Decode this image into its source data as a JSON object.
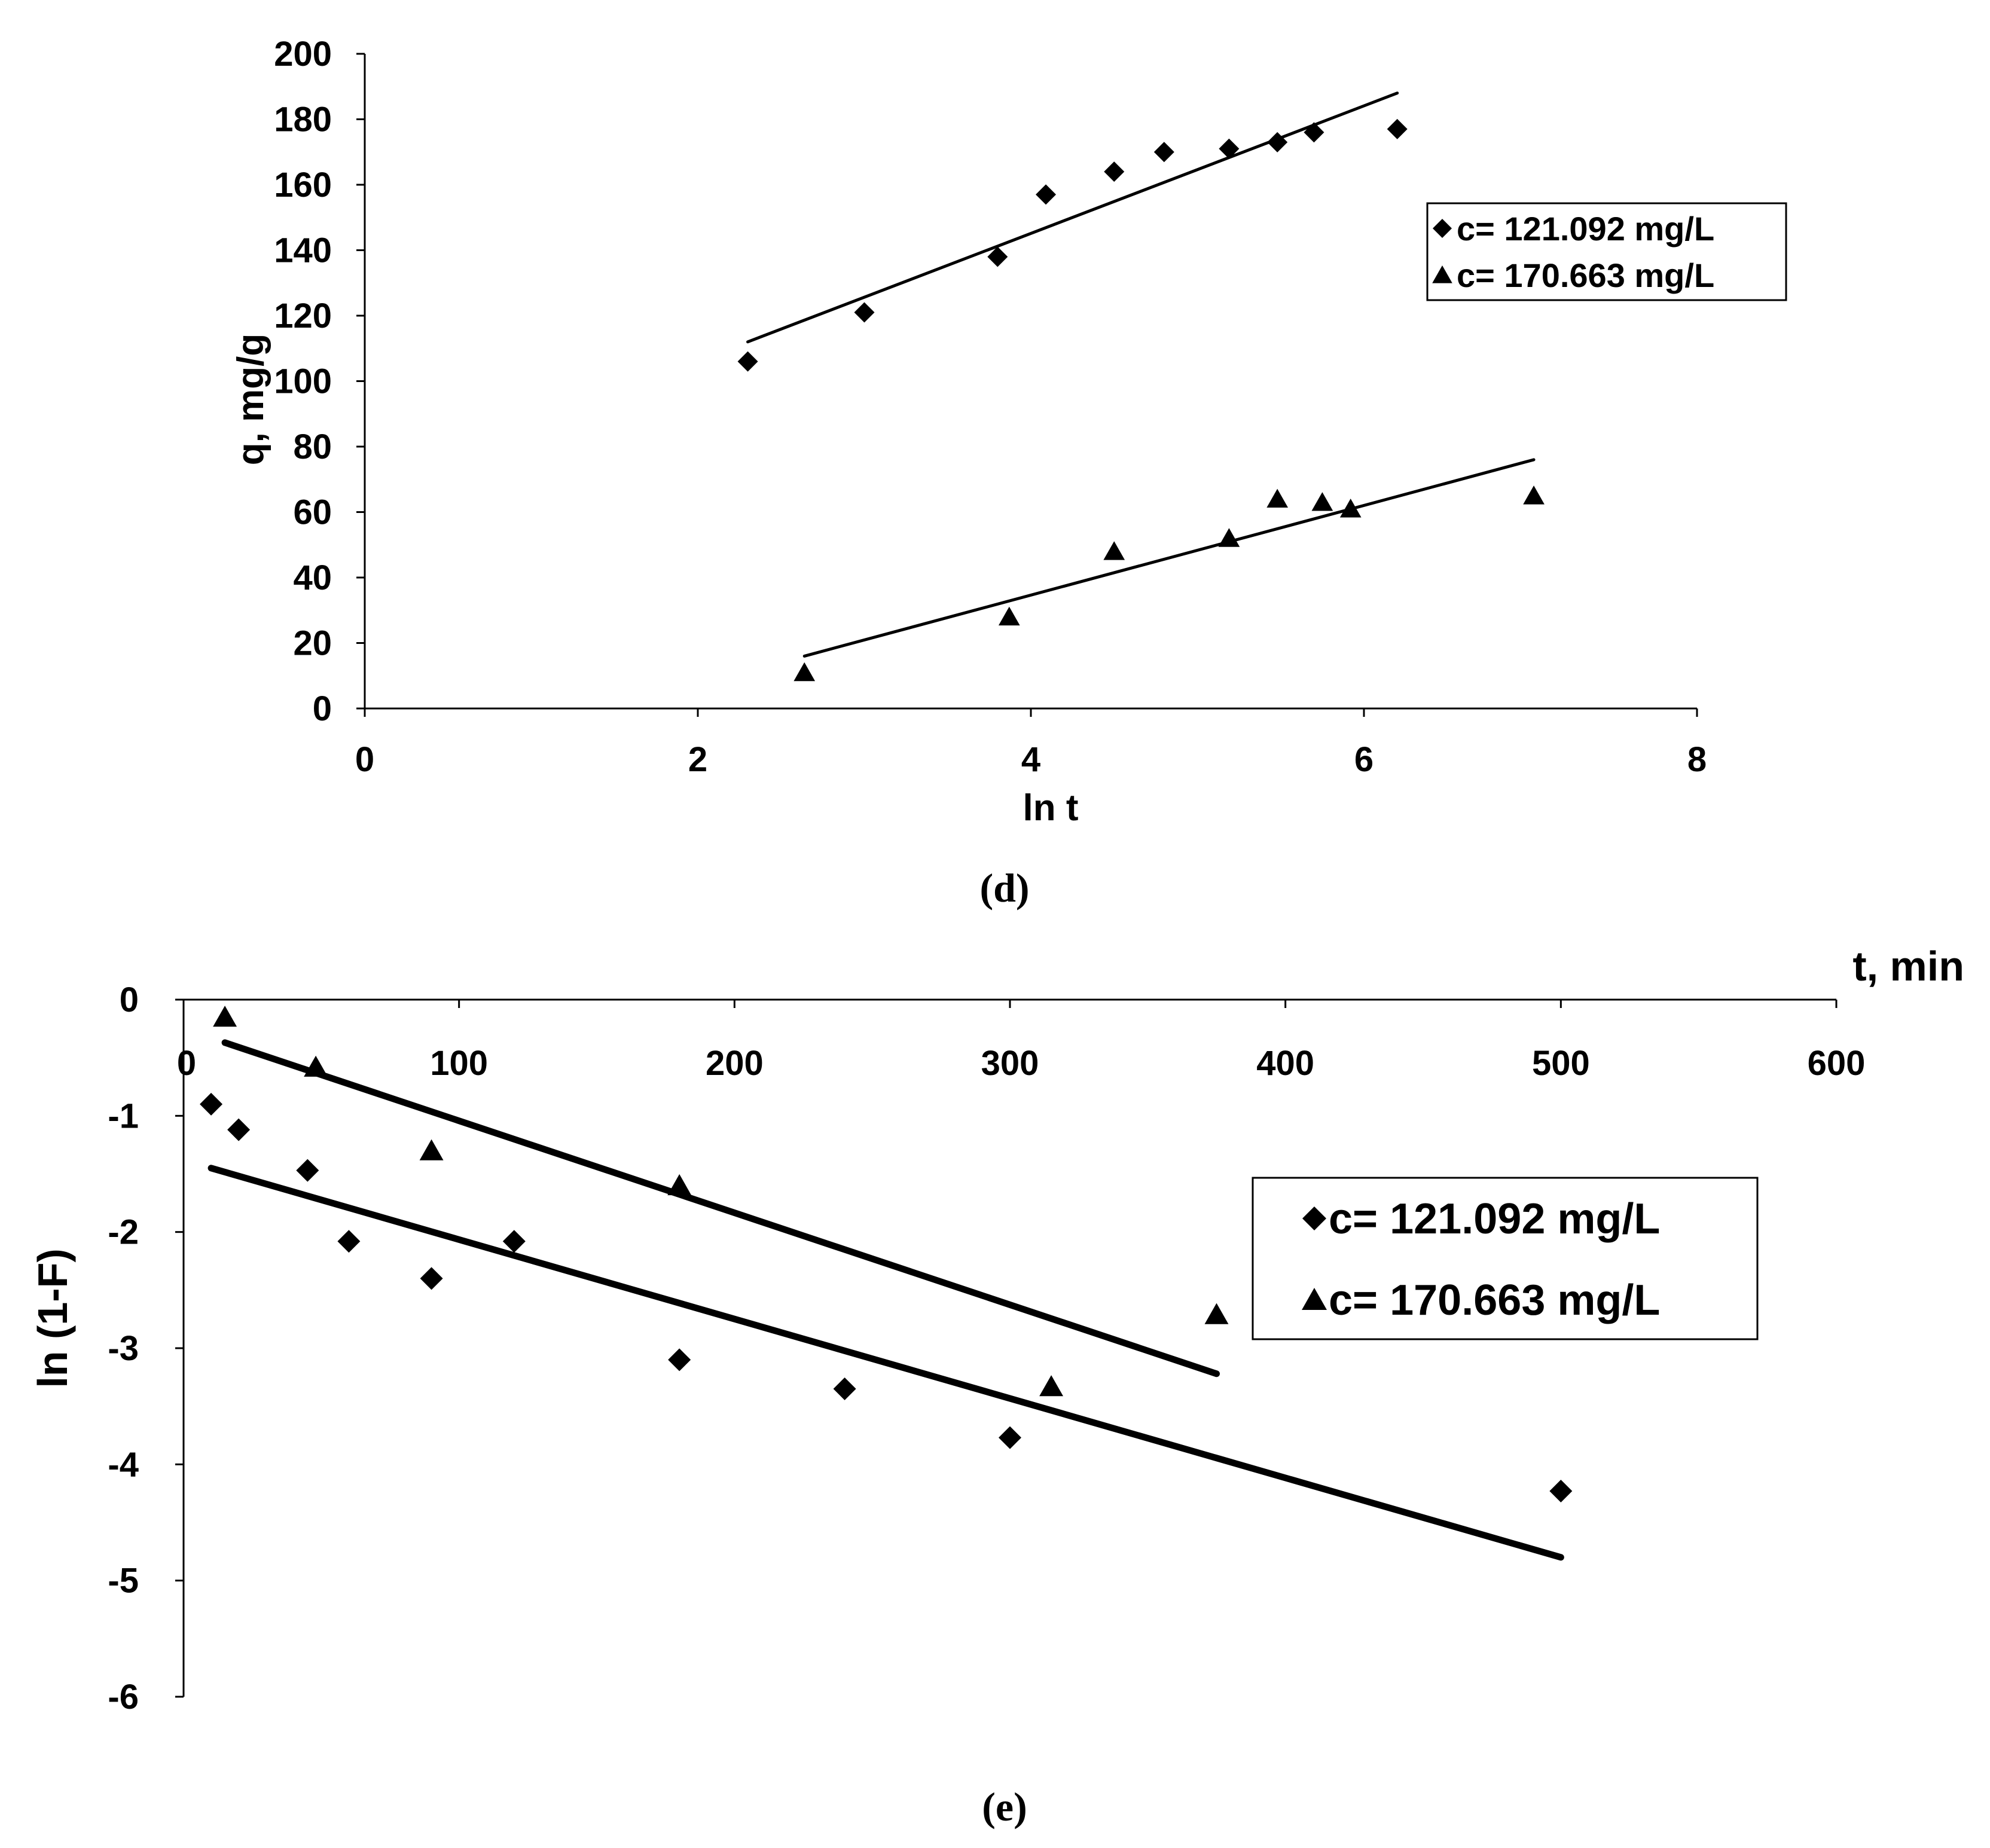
{
  "chart_data": [
    {
      "id": "d",
      "type": "scatter",
      "caption": "(d)",
      "xlabel": "ln t",
      "ylabel": "q, mg/g",
      "xlim": [
        0,
        8
      ],
      "ylim": [
        0,
        200
      ],
      "xticks": [
        "0",
        "2",
        "4",
        "6",
        "8"
      ],
      "yticks": [
        "0",
        "20",
        "40",
        "60",
        "80",
        "100",
        "120",
        "140",
        "160",
        "180",
        "200"
      ],
      "legend_position": "right-middle",
      "series": [
        {
          "name": "c= 121.092 mg/L",
          "marker": "diamond",
          "x": [
            2.3,
            3.0,
            3.8,
            4.09,
            4.5,
            4.8,
            5.19,
            5.48,
            5.7,
            6.2
          ],
          "y": [
            106,
            121,
            138,
            157,
            164,
            170,
            171,
            173,
            176,
            177
          ],
          "trendline": {
            "x": [
              2.3,
              6.2
            ],
            "y": [
              112,
              188
            ]
          }
        },
        {
          "name": "c= 170.663 mg/L",
          "marker": "triangle",
          "x": [
            2.64,
            3.87,
            4.5,
            5.19,
            5.48,
            5.75,
            5.92,
            7.02
          ],
          "y": [
            11,
            28,
            48,
            52,
            64,
            63,
            61,
            65
          ],
          "trendline": {
            "x": [
              2.64,
              7.02
            ],
            "y": [
              16,
              76
            ]
          }
        }
      ]
    },
    {
      "id": "e",
      "type": "scatter",
      "caption": "(e)",
      "xlabel": "t, min",
      "ylabel": "ln (1-F)",
      "xlim": [
        0,
        600
      ],
      "ylim": [
        -6,
        0
      ],
      "xticks": [
        "0",
        "100",
        "200",
        "300",
        "400",
        "500",
        "600"
      ],
      "yticks": [
        "-6",
        "-5",
        "-4",
        "-3",
        "-2",
        "-1",
        "0"
      ],
      "legend_position": "right-middle",
      "series": [
        {
          "name": "c= 121.092 mg/L",
          "marker": "diamond",
          "x": [
            10,
            20,
            45,
            60,
            90,
            120,
            180,
            240,
            300,
            500
          ],
          "y": [
            -0.9,
            -1.12,
            -1.47,
            -2.08,
            -2.4,
            -2.08,
            -3.1,
            -3.35,
            -3.77,
            -4.23
          ],
          "trendline": {
            "x": [
              10,
              500
            ],
            "y": [
              -1.45,
              -4.8
            ]
          }
        },
        {
          "name": "c= 170.663 mg/L",
          "marker": "triangle",
          "x": [
            15,
            48,
            90,
            180,
            315,
            375
          ],
          "y": [
            -0.15,
            -0.58,
            -1.3,
            -1.6,
            -3.33,
            -2.71
          ],
          "trendline": {
            "x": [
              15,
              375
            ],
            "y": [
              -0.37,
              -3.22
            ]
          }
        }
      ]
    }
  ]
}
